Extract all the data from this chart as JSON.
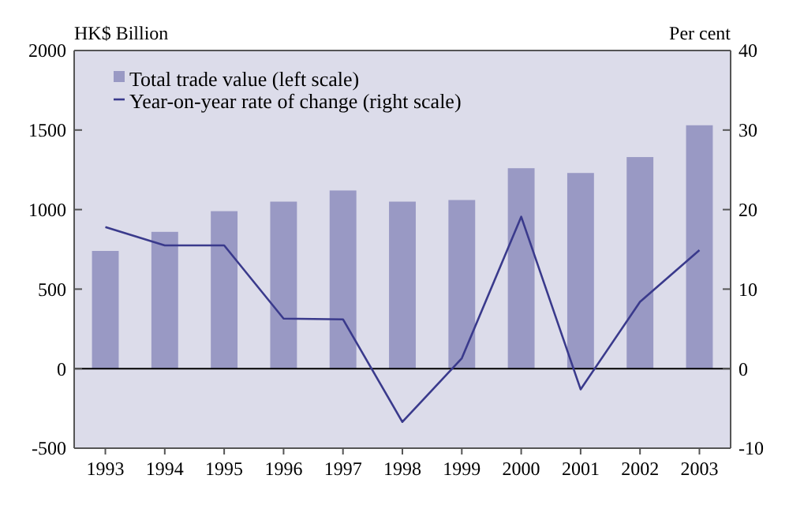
{
  "chart_data": {
    "type": "bar",
    "ylabel": "HK$ Billion",
    "y2label": "Per cent",
    "categories": [
      "1993",
      "1994",
      "1995",
      "1996",
      "1997",
      "1998",
      "1999",
      "2000",
      "2001",
      "2002",
      "2003"
    ],
    "series": [
      {
        "name": "Total trade value (left scale)",
        "color": "#9999c4",
        "values": [
          740,
          860,
          990,
          1050,
          1120,
          1050,
          1060,
          1260,
          1230,
          1330,
          1530
        ]
      },
      {
        "name": "Year-on-year rate of change (right scale)",
        "type": "line",
        "axis": "y2",
        "color": "#3a3a8c",
        "values": [
          17.8,
          15.5,
          15.5,
          6.3,
          6.2,
          -6.7,
          1.3,
          19.1,
          -2.6,
          8.4,
          14.9
        ]
      }
    ],
    "ylim": [
      -500,
      2000
    ],
    "yticks": [
      -500,
      0,
      500,
      1000,
      1500,
      2000
    ],
    "y2lim": [
      -10,
      40
    ],
    "y2ticks": [
      -10,
      0,
      10,
      20,
      30,
      40
    ],
    "legend": "top left",
    "marker": "none",
    "line_style": "solid"
  }
}
